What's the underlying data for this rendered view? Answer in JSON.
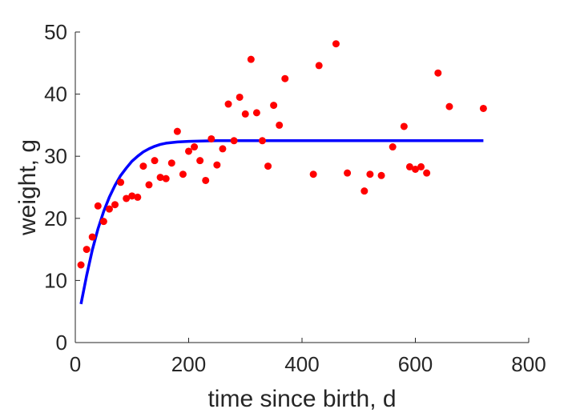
{
  "chart_data": {
    "type": "scatter",
    "title": "",
    "xlabel": "time since birth, d",
    "ylabel": "weight, g",
    "xlim": [
      0,
      800
    ],
    "ylim": [
      0,
      50
    ],
    "xticks": [
      0,
      200,
      400,
      600,
      800
    ],
    "yticks": [
      0,
      10,
      20,
      30,
      40,
      50
    ],
    "grid": false,
    "legend": "none",
    "series": [
      {
        "kind": "scatter",
        "color": "#ff0000",
        "points": [
          [
            10,
            12.5
          ],
          [
            20,
            15.0
          ],
          [
            30,
            17.0
          ],
          [
            40,
            22.0
          ],
          [
            50,
            19.5
          ],
          [
            60,
            21.5
          ],
          [
            70,
            22.2
          ],
          [
            80,
            25.8
          ],
          [
            90,
            23.2
          ],
          [
            100,
            23.6
          ],
          [
            110,
            23.4
          ],
          [
            120,
            28.4
          ],
          [
            130,
            25.4
          ],
          [
            140,
            29.3
          ],
          [
            150,
            26.6
          ],
          [
            160,
            26.4
          ],
          [
            170,
            28.9
          ],
          [
            180,
            34.0
          ],
          [
            190,
            27.1
          ],
          [
            200,
            30.8
          ],
          [
            210,
            31.5
          ],
          [
            220,
            29.3
          ],
          [
            230,
            26.1
          ],
          [
            240,
            32.8
          ],
          [
            250,
            28.6
          ],
          [
            260,
            31.2
          ],
          [
            270,
            38.4
          ],
          [
            280,
            32.5
          ],
          [
            290,
            39.5
          ],
          [
            300,
            36.8
          ],
          [
            310,
            45.6
          ],
          [
            320,
            37.0
          ],
          [
            330,
            32.5
          ],
          [
            340,
            28.4
          ],
          [
            350,
            38.2
          ],
          [
            360,
            35.0
          ],
          [
            370,
            42.5
          ],
          [
            420,
            27.1
          ],
          [
            430,
            44.6
          ],
          [
            460,
            48.1
          ],
          [
            480,
            27.3
          ],
          [
            510,
            24.4
          ],
          [
            520,
            27.1
          ],
          [
            540,
            26.9
          ],
          [
            560,
            31.5
          ],
          [
            580,
            34.8
          ],
          [
            590,
            28.3
          ],
          [
            600,
            27.9
          ],
          [
            610,
            28.3
          ],
          [
            620,
            27.3
          ],
          [
            640,
            43.4
          ],
          [
            660,
            38.0
          ],
          [
            720,
            37.7
          ]
        ]
      },
      {
        "kind": "line",
        "color": "#0000ff",
        "points": [
          [
            10,
            6.2
          ],
          [
            20,
            10.8
          ],
          [
            30,
            14.9
          ],
          [
            40,
            18.3
          ],
          [
            50,
            21.1
          ],
          [
            60,
            23.4
          ],
          [
            70,
            25.3
          ],
          [
            80,
            26.9
          ],
          [
            90,
            28.1
          ],
          [
            100,
            29.2
          ],
          [
            110,
            30.0
          ],
          [
            120,
            30.7
          ],
          [
            130,
            31.2
          ],
          [
            140,
            31.6
          ],
          [
            150,
            31.9
          ],
          [
            160,
            32.1
          ],
          [
            170,
            32.2
          ],
          [
            180,
            32.3
          ],
          [
            200,
            32.4
          ],
          [
            220,
            32.45
          ],
          [
            250,
            32.5
          ],
          [
            300,
            32.5
          ],
          [
            400,
            32.5
          ],
          [
            500,
            32.5
          ],
          [
            600,
            32.5
          ],
          [
            700,
            32.5
          ],
          [
            720,
            32.5
          ]
        ]
      }
    ]
  }
}
